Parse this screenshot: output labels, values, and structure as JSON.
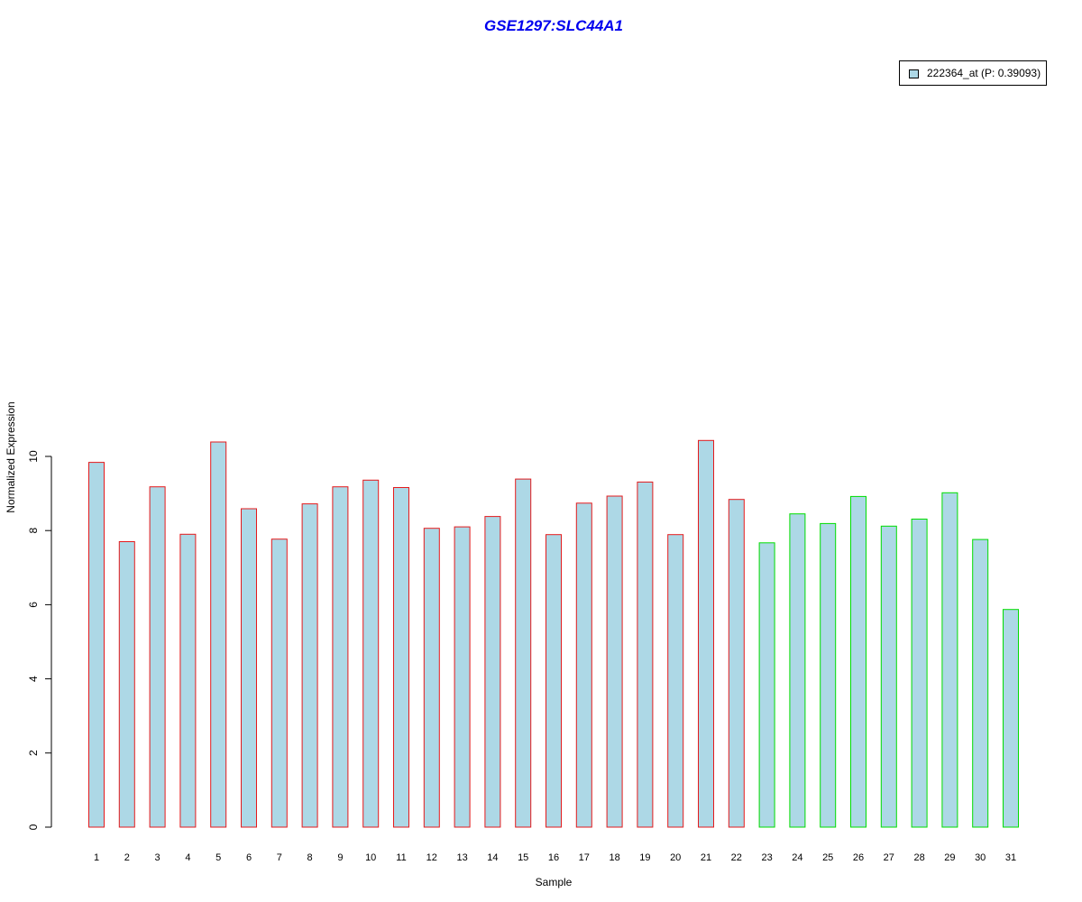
{
  "chart_data": {
    "type": "bar",
    "title": "GSE1297:SLC44A1",
    "xlabel": "Sample",
    "ylabel": "Normalized Expression",
    "ylim": [
      0,
      10.4
    ],
    "yticks": [
      "0",
      "2",
      "4",
      "6",
      "8",
      "10"
    ],
    "categories": [
      "1",
      "2",
      "3",
      "4",
      "5",
      "6",
      "7",
      "8",
      "9",
      "10",
      "11",
      "12",
      "13",
      "14",
      "15",
      "16",
      "17",
      "18",
      "19",
      "20",
      "21",
      "22",
      "23",
      "24",
      "25",
      "26",
      "27",
      "28",
      "29",
      "30",
      "31"
    ],
    "values": [
      9.84,
      7.7,
      9.18,
      7.9,
      10.39,
      8.59,
      7.77,
      8.72,
      9.18,
      9.36,
      9.16,
      8.06,
      8.1,
      8.38,
      9.39,
      7.89,
      8.74,
      8.93,
      9.31,
      7.89,
      10.43,
      8.84,
      7.67,
      8.45,
      8.19,
      8.92,
      8.12,
      8.31,
      9.02,
      7.76,
      5.87
    ],
    "groups": [
      "red",
      "red",
      "red",
      "red",
      "red",
      "red",
      "red",
      "red",
      "red",
      "red",
      "red",
      "red",
      "red",
      "red",
      "red",
      "red",
      "red",
      "red",
      "red",
      "red",
      "red",
      "red",
      "green",
      "green",
      "green",
      "green",
      "green",
      "green",
      "green",
      "green",
      "green"
    ],
    "legend": {
      "label": "222364_at (P: 0.39093)",
      "placement": "top-right"
    },
    "colors": {
      "bar_fill": "#add8e6",
      "red": "#e41a1c",
      "green": "#00dd00",
      "title": "#0000ee"
    }
  }
}
